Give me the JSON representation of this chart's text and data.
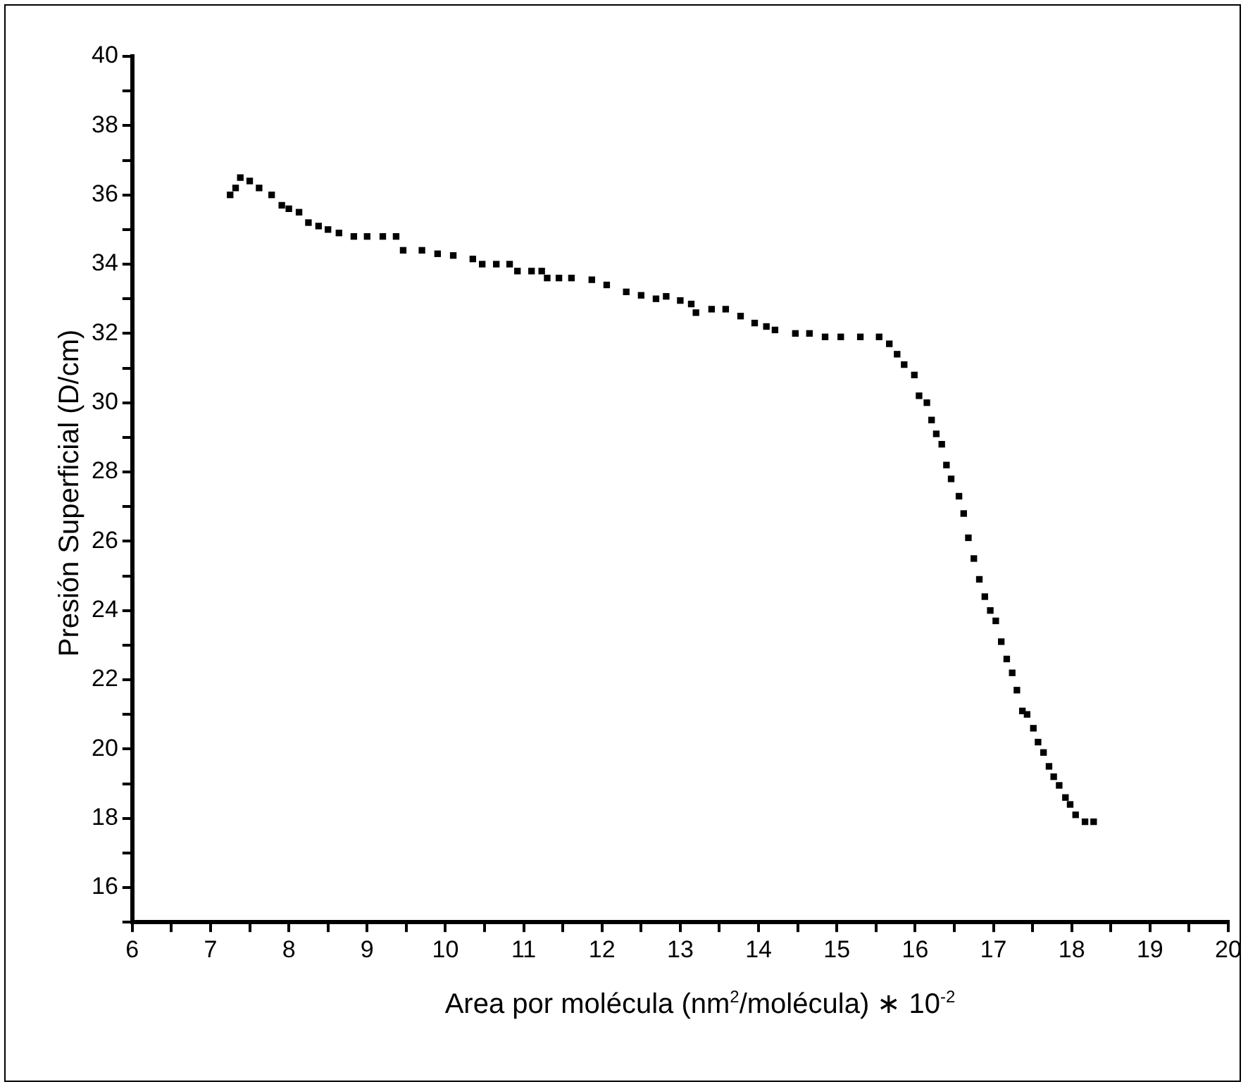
{
  "chart_data": {
    "type": "scatter",
    "xlabel": "Area por molécula (nm$^{2}$/molécula) ∗ 10$^{-2}$",
    "ylabel": "Presión Superficial (D/cm)",
    "xlim": [
      6,
      20
    ],
    "ylim": [
      15,
      40
    ],
    "xticks": [
      6,
      {
        "value": 6.5,
        "label": null
      },
      7,
      {
        "value": 7.5,
        "label": null
      },
      8,
      {
        "value": 8.5,
        "label": null
      },
      9,
      {
        "value": 9.5,
        "label": null
      },
      10,
      {
        "value": 10.5,
        "label": null
      },
      11,
      {
        "value": 11.5,
        "label": null
      },
      12,
      {
        "value": 12.5,
        "label": null
      },
      13,
      {
        "value": 13.5,
        "label": null
      },
      14,
      {
        "value": 14.5,
        "label": null
      },
      15,
      {
        "value": 15.5,
        "label": null
      },
      16,
      {
        "value": 16.5,
        "label": null
      },
      17,
      {
        "value": 17.5,
        "label": null
      },
      18,
      {
        "value": 18.5,
        "label": null
      },
      19,
      {
        "value": 19.5,
        "label": null
      },
      20
    ],
    "yticks": [
      {
        "value": 15,
        "label": null
      },
      16,
      {
        "value": 17,
        "label": null
      },
      18,
      {
        "value": 19,
        "label": null
      },
      20,
      {
        "value": 21,
        "label": null
      },
      22,
      {
        "value": 23,
        "label": null
      },
      24,
      {
        "value": 25,
        "label": null
      },
      26,
      {
        "value": 27,
        "label": null
      },
      28,
      {
        "value": 29,
        "label": null
      },
      30,
      {
        "value": 31,
        "label": null
      },
      32,
      {
        "value": 33,
        "label": null
      },
      34,
      {
        "value": 35,
        "label": null
      },
      36,
      {
        "value": 37,
        "label": null
      },
      38,
      {
        "value": 39,
        "label": null
      },
      40
    ],
    "grid": false,
    "legend": false,
    "marker": "square",
    "series": [
      {
        "color": "#000000",
        "x": [
          7.25,
          7.32,
          7.38,
          7.5,
          7.62,
          7.78,
          7.91,
          8.0,
          8.13,
          8.25,
          8.38,
          8.5,
          8.64,
          8.83,
          9.0,
          9.2,
          9.37,
          9.46,
          9.7,
          9.9,
          10.1,
          10.35,
          10.47,
          10.65,
          10.82,
          10.92,
          11.1,
          11.23,
          11.3,
          11.45,
          11.61,
          11.87,
          12.06,
          12.31,
          12.5,
          12.69,
          12.82,
          13.0,
          13.14,
          13.2,
          13.4,
          13.58,
          13.77,
          13.95,
          14.1,
          14.21,
          14.47,
          14.65,
          14.85,
          15.05,
          15.3,
          15.54,
          15.67,
          15.77,
          15.86,
          15.99,
          16.05,
          16.15,
          16.21,
          16.27,
          16.34,
          16.4,
          16.46,
          16.56,
          16.62,
          16.68,
          16.75,
          16.82,
          16.89,
          16.96,
          17.03,
          17.1,
          17.17,
          17.24,
          17.3,
          17.37,
          17.43,
          17.51,
          17.57,
          17.64,
          17.71,
          17.77,
          17.84,
          17.92,
          17.98,
          18.05,
          18.17,
          18.28
        ],
        "values": [
          36.0,
          36.2,
          36.5,
          36.4,
          36.2,
          36.0,
          35.7,
          35.6,
          35.5,
          35.2,
          35.1,
          35.0,
          34.9,
          34.8,
          34.8,
          34.8,
          34.8,
          34.4,
          34.4,
          34.3,
          34.25,
          34.15,
          34.0,
          34.0,
          34.0,
          33.8,
          33.8,
          33.8,
          33.6,
          33.6,
          33.6,
          33.55,
          33.4,
          33.2,
          33.1,
          33.0,
          33.07,
          32.95,
          32.85,
          32.6,
          32.7,
          32.7,
          32.5,
          32.3,
          32.2,
          32.1,
          32.0,
          32.0,
          31.9,
          31.9,
          31.9,
          31.9,
          31.7,
          31.4,
          31.1,
          30.8,
          30.2,
          30.0,
          29.5,
          29.1,
          28.8,
          28.2,
          27.8,
          27.3,
          26.8,
          26.1,
          25.5,
          24.9,
          24.4,
          24.0,
          23.7,
          23.1,
          22.6,
          22.2,
          21.7,
          21.1,
          21.0,
          20.6,
          20.2,
          19.9,
          19.5,
          19.2,
          18.95,
          18.6,
          18.4,
          18.1,
          17.9,
          17.9
        ]
      }
    ]
  }
}
